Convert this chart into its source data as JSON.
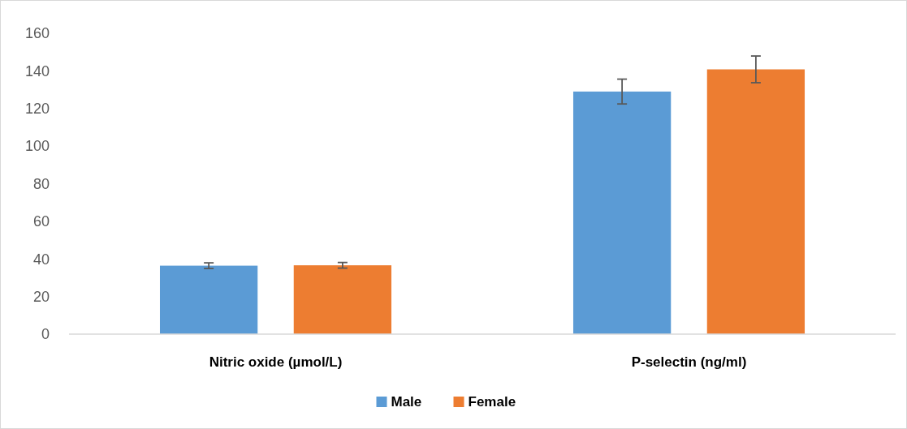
{
  "chart_data": {
    "type": "bar",
    "categories": [
      "Nitric oxide (µmol/L)",
      "P-selectin (ng/ml)"
    ],
    "series": [
      {
        "name": "Male",
        "color": "#5b9bd5",
        "values": [
          36.4,
          129
        ],
        "errors": [
          1.5,
          6.6
        ]
      },
      {
        "name": "Female",
        "color": "#ed7d31",
        "values": [
          36.6,
          140.8
        ],
        "errors": [
          1.5,
          7.1
        ]
      }
    ],
    "ylim": [
      0,
      160
    ],
    "yticks": [
      0,
      20,
      40,
      60,
      80,
      100,
      120,
      140,
      160
    ],
    "grid": false,
    "legend": "bottom"
  }
}
